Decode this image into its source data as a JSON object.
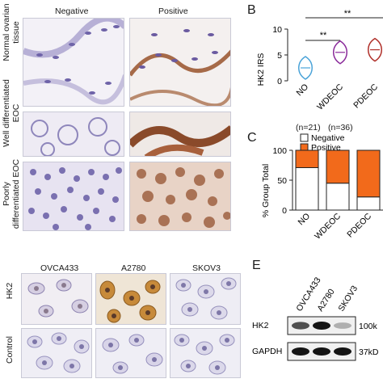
{
  "panelA": {
    "columns": [
      "Negative",
      "Positive"
    ],
    "rows": [
      {
        "line1": "Normal ovarian",
        "line2": "tissue"
      },
      {
        "line1": "Well differentiated",
        "line2": "EOC"
      },
      {
        "line1": "Poorly",
        "line2": "differentiated EOC"
      }
    ]
  },
  "panelB": {
    "letter": "B",
    "ylabel": "HK2  IRS",
    "sig": [
      "**",
      "**"
    ],
    "groups": [
      {
        "name": "NO",
        "n": "(n=21)"
      },
      {
        "name": "WDEOC",
        "n": "(n=36)"
      },
      {
        "name": "PDEOC",
        "n": ""
      }
    ]
  },
  "panelC": {
    "letter": "C",
    "ylabel": "% Group Total",
    "legend": [
      "Negative",
      "Positive"
    ]
  },
  "panelD": {
    "columns": [
      "OVCA433",
      "A2780",
      "SKOV3"
    ],
    "rows": [
      "HK2",
      "Control"
    ]
  },
  "panelE": {
    "letter": "E",
    "lanes": [
      "OVCA433",
      "A2780",
      "SKOV3"
    ],
    "bands": [
      {
        "label": "HK2",
        "size": "100k",
        "intensity": [
          0.72,
          1.0,
          0.28
        ]
      },
      {
        "label": "GAPDH",
        "size": "37kD",
        "intensity": [
          1.0,
          1.0,
          1.0
        ]
      }
    ]
  },
  "colors": {
    "positive": "#f26a1b",
    "negative": "#ffffff",
    "violin_no": "#4aa3d8",
    "violin_wd": "#8a2a9a",
    "violin_pd": "#b0302a"
  },
  "chart_data": [
    {
      "type": "violin",
      "categories": [
        "NO",
        "WDEOC",
        "PDEOC"
      ],
      "ylabel": "HK2  IRS",
      "ylim": [
        0,
        10
      ],
      "yticks": [
        0,
        5,
        10
      ],
      "medians": [
        2.5,
        5.5,
        6.0
      ]
    },
    {
      "type": "bar",
      "stacked": true,
      "categories": [
        "NO",
        "WDEOC",
        "PDEOC"
      ],
      "ylabel": "% Group Total",
      "ylim": [
        0,
        100
      ],
      "yticks": [
        0,
        50,
        100
      ],
      "series": [
        {
          "name": "Negative",
          "values": [
            71,
            45,
            22
          ]
        },
        {
          "name": "Positive",
          "values": [
            29,
            55,
            78
          ]
        }
      ]
    }
  ]
}
